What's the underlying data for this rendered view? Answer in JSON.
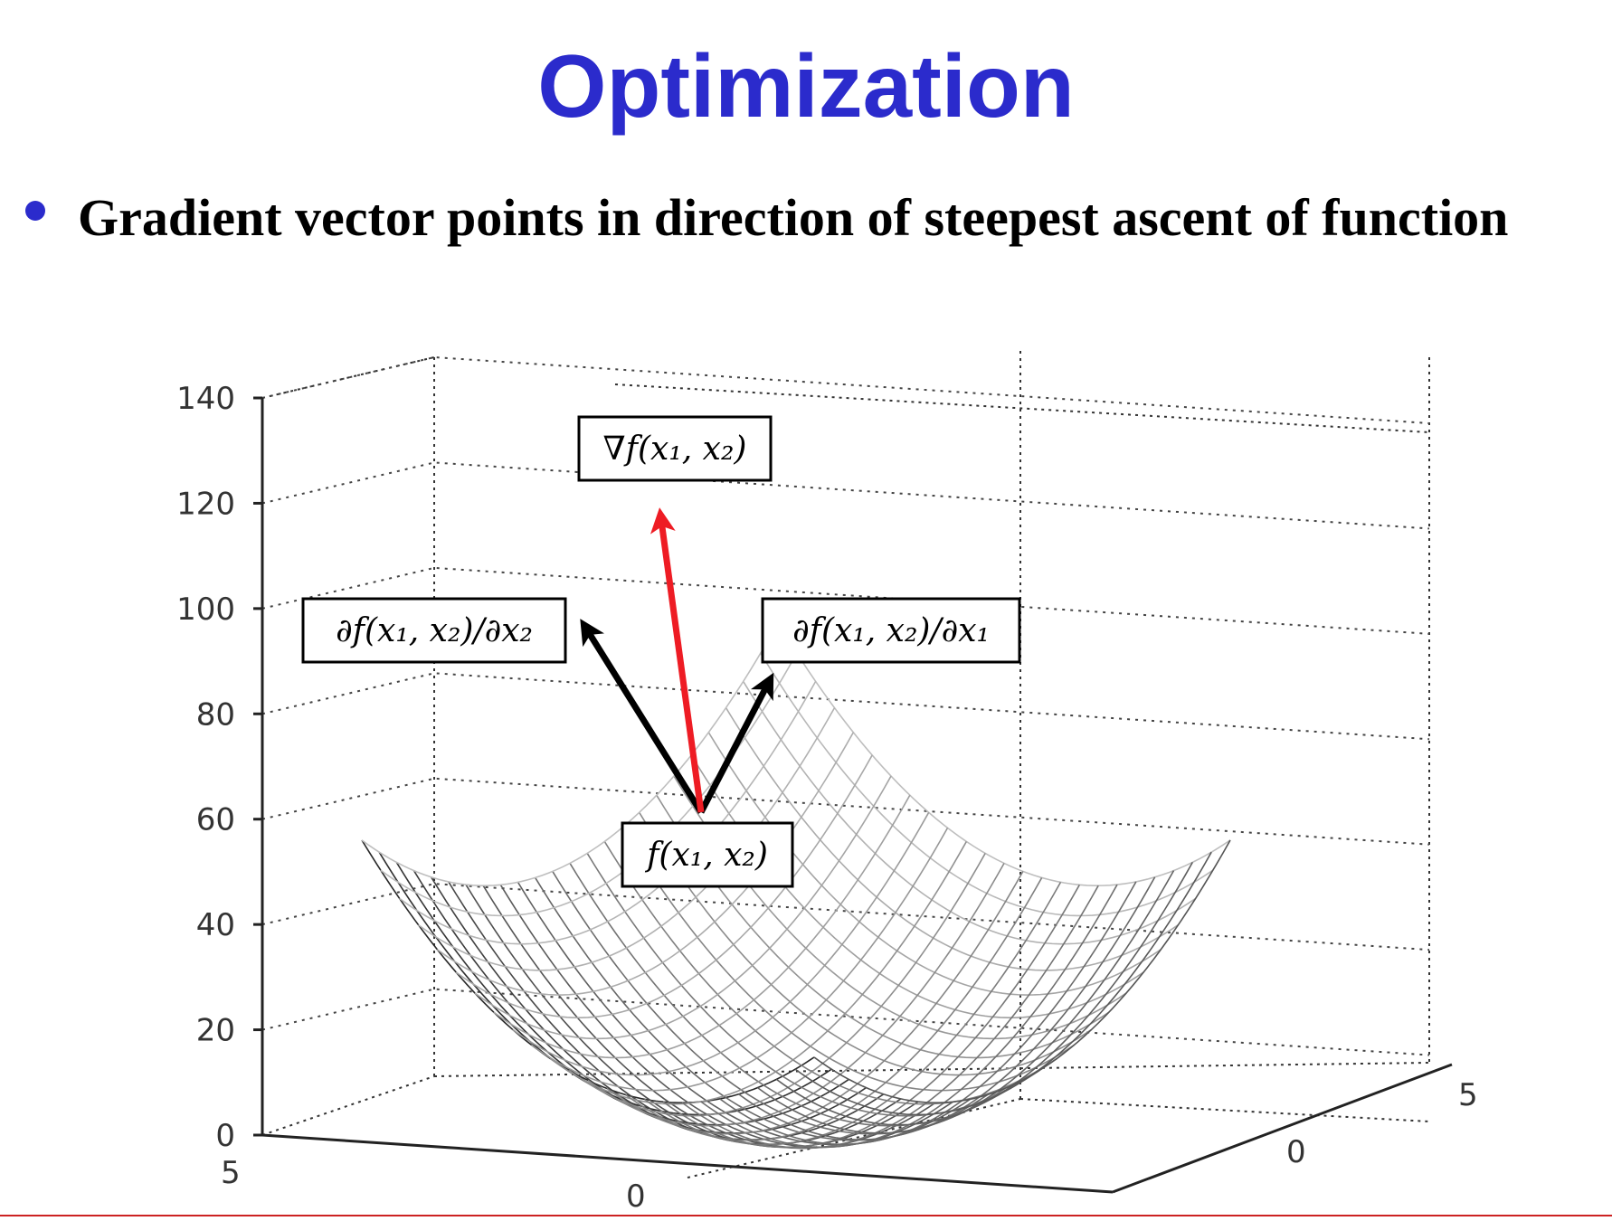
{
  "slide": {
    "title": "Optimization",
    "bullet": "Gradient vector points in direction of steepest ascent of function"
  },
  "colors": {
    "title": "#2b2bcc",
    "bullet": "#2b2bcc",
    "gradient_arrow": "#ee1c24",
    "partial_arrows": "#000000",
    "rule": "#cc2222"
  },
  "surface": {
    "function": "x1^2 + x2^2",
    "x_range": [
      -5,
      5
    ],
    "y_range": [
      -5,
      5
    ],
    "grid_lines": 24
  },
  "axes": {
    "z_ticks": [
      "140",
      "120",
      "100",
      "80",
      "60",
      "40",
      "20",
      "0"
    ],
    "z_values": [
      140,
      120,
      100,
      80,
      60,
      40,
      20,
      0
    ],
    "left_ticks": [
      "5",
      "0"
    ],
    "right_ticks": [
      "5",
      "0"
    ]
  },
  "labels": {
    "gradient": "∇f(x₁, x₂)",
    "partial_x2": "∂f(x₁, x₂)/∂x₂",
    "partial_x1": "∂f(x₁, x₂)/∂x₁",
    "point": "f(x₁, x₂)"
  }
}
